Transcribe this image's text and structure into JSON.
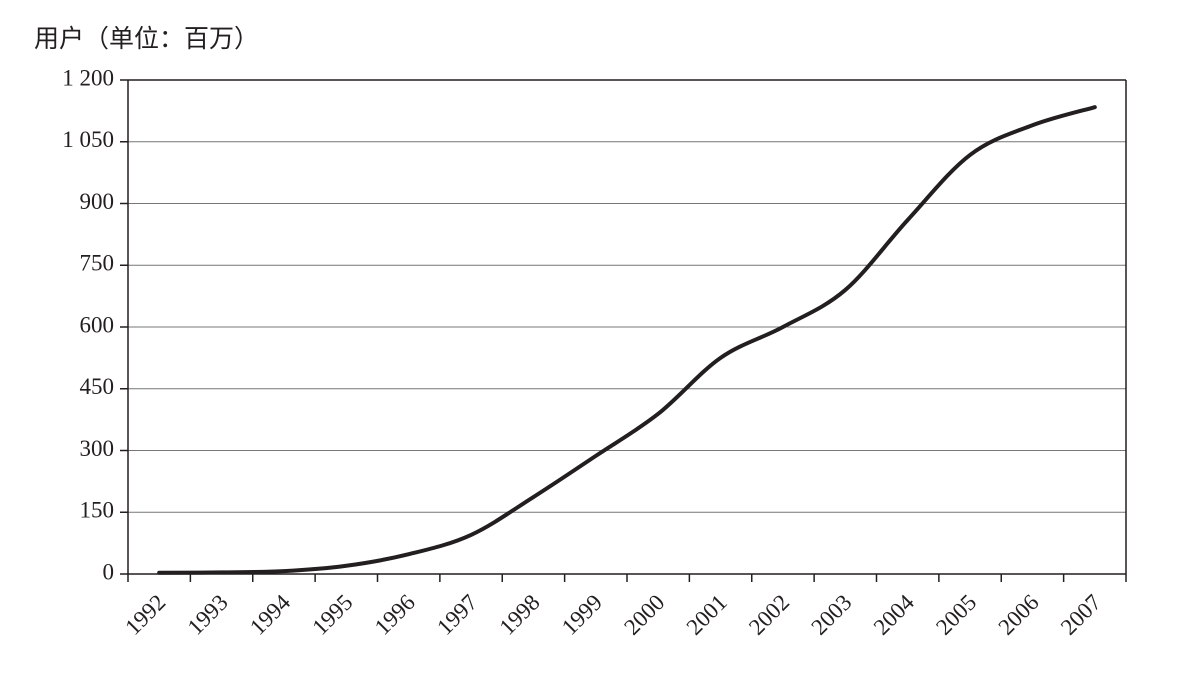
{
  "chart_data": {
    "type": "line",
    "y_label": "用户（单位：百万）",
    "categories": [
      "1992",
      "1993",
      "1994",
      "1995",
      "1996",
      "1997",
      "1998",
      "1999",
      "2000",
      "2001",
      "2002",
      "2003",
      "2004",
      "2005",
      "2006",
      "2007"
    ],
    "series": [
      {
        "name": "用户",
        "color": "#231f20",
        "values": [
          3,
          4,
          7,
          20,
          48,
          95,
          187,
          287,
          389,
          525,
          600,
          690,
          860,
          1018,
          1090,
          1134
        ]
      }
    ],
    "ylim": [
      0,
      1200
    ],
    "yticks": [
      0,
      150,
      300,
      450,
      600,
      750,
      900,
      {
        "value": 1050,
        "label": "1 050"
      },
      {
        "value": 1200,
        "label": "1 200"
      }
    ],
    "grid": true
  }
}
